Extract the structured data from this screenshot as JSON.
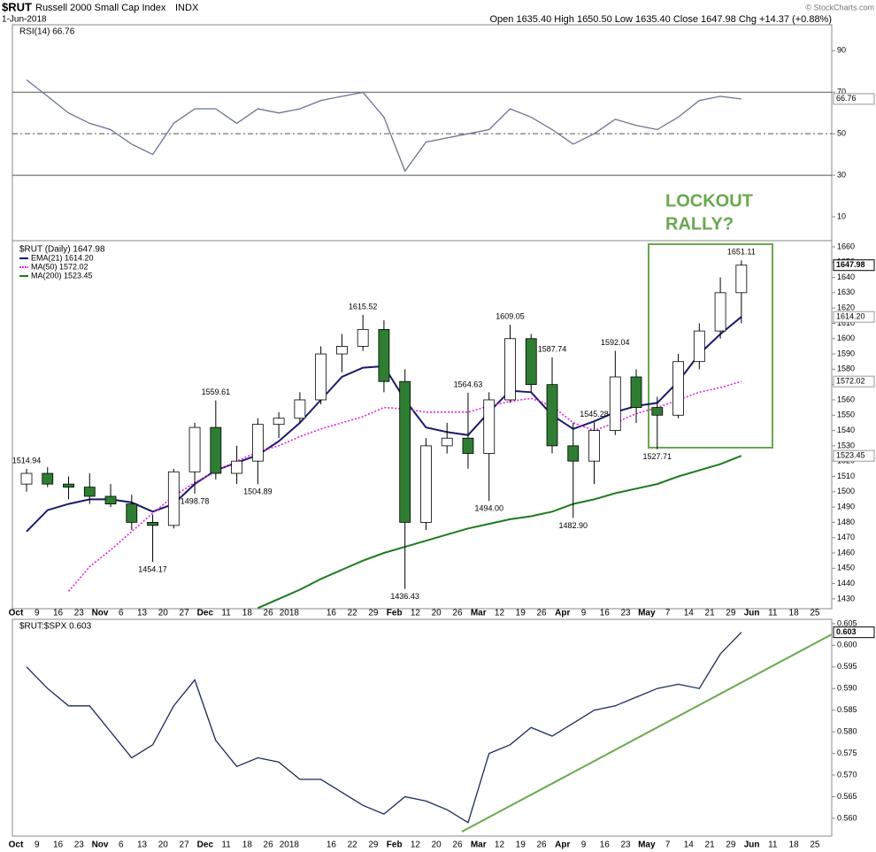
{
  "header": {
    "symbol": "$RUT",
    "name": "Russell 2000 Small Cap Index",
    "exchange": "INDX",
    "date": "1-Jun-2018",
    "quote": "Open 1635.40   High 1650.50   Low 1635.40   Close 1647.98   Chg +14.37 (+0.88%)",
    "credit": "© StockCharts.com"
  },
  "chart_data": [
    {
      "type": "line",
      "legend": "RSI(14) 66.76",
      "color": "#6b7394",
      "values": [
        76,
        68,
        60,
        55,
        52,
        45,
        40,
        55,
        62,
        62,
        55,
        62,
        60,
        62,
        66,
        68,
        70,
        58,
        32,
        46,
        48,
        50,
        52,
        62,
        58,
        52,
        45,
        50,
        57,
        54,
        52,
        58,
        66,
        68,
        66.76,
        null,
        null,
        null,
        null
      ],
      "ylim": [
        -1.5,
        102.5
      ],
      "yticks": [
        10,
        30,
        50,
        70,
        90
      ],
      "levels": [
        70,
        50,
        30
      ],
      "annotation": [
        "LOCKOUT",
        "RALLY?"
      ],
      "annotation_color": "#6aa84f"
    },
    {
      "type": "candlestick",
      "legend": "$RUT (Daily) 1647.98",
      "up_color": "#ffffff",
      "down_color": "#2e7d32",
      "categories": [
        "Oct",
        "9",
        "16",
        "23",
        "Nov",
        "6",
        "13",
        "20",
        "27",
        "Dec",
        "11",
        "18",
        "26",
        "2018",
        null,
        "16",
        "22",
        "29",
        "Feb",
        "12",
        "20",
        "26",
        "Mar",
        "12",
        "19",
        "26",
        "Apr",
        "9",
        "16",
        "23",
        "May",
        "7",
        "14",
        "21",
        "29",
        "Jun",
        "11",
        "18",
        "25"
      ],
      "open": [
        1505,
        1512,
        1505,
        1503,
        1497,
        1492,
        1480,
        1478,
        1513,
        1542,
        1512,
        1520,
        1544,
        1548,
        1560,
        1590,
        1595,
        1606,
        1572,
        1480,
        1530,
        1535,
        1525,
        1560,
        1600,
        1570,
        1530,
        1520,
        1540,
        1575,
        1555,
        1550,
        1585,
        1605,
        1630,
        null,
        null,
        null,
        null
      ],
      "high": [
        1514.94,
        1516,
        1510,
        1512,
        1505,
        1498,
        1485,
        1515,
        1545,
        1559.61,
        1530,
        1548,
        1552,
        1565,
        1595,
        1603,
        1615.52,
        1612,
        1580,
        1535,
        1545,
        1564.63,
        1565,
        1609.05,
        1603,
        1587.74,
        1545,
        1545.28,
        1592.04,
        1580,
        1562,
        1590,
        1610,
        1640,
        1651.11,
        null,
        null,
        null,
        null
      ],
      "low": [
        1500,
        1503,
        1495,
        1492,
        1490,
        1475,
        1454.17,
        1476,
        1498.78,
        1508,
        1505,
        1504.89,
        1535,
        1545,
        1557,
        1578,
        1592,
        1565,
        1436.43,
        1475,
        1525,
        1515,
        1494,
        1558,
        1565,
        1525,
        1482.9,
        1505,
        1537,
        1545,
        1527.71,
        1548,
        1580,
        1600,
        1610,
        null,
        null,
        null,
        null
      ],
      "close": [
        1512,
        1505,
        1503,
        1497,
        1492,
        1480,
        1478,
        1513,
        1542,
        1512,
        1520,
        1544,
        1548,
        1560,
        1590,
        1595,
        1606,
        1572,
        1480,
        1530,
        1535,
        1525,
        1560,
        1600,
        1570,
        1530,
        1520,
        1540,
        1575,
        1555,
        1550,
        1585,
        1605,
        1630,
        1647.98,
        null,
        null,
        null,
        null
      ],
      "high_labels": [
        "1514.94",
        null,
        null,
        null,
        null,
        null,
        null,
        null,
        null,
        "1559.61",
        null,
        null,
        null,
        null,
        null,
        null,
        "1615.52",
        null,
        null,
        null,
        null,
        "1564.63",
        null,
        "1609.05",
        null,
        "1587.74",
        null,
        "1545.28",
        "1592.04",
        null,
        null,
        null,
        null,
        null,
        "1651.11",
        null,
        null,
        null,
        null
      ],
      "low_labels": [
        null,
        null,
        null,
        null,
        null,
        null,
        "1454.17",
        null,
        "1498.78",
        null,
        null,
        "1504.89",
        null,
        null,
        null,
        null,
        null,
        null,
        "1436.43",
        null,
        null,
        null,
        "1494.00",
        null,
        null,
        null,
        "1482.90",
        null,
        null,
        null,
        "1527.71",
        null,
        null,
        null,
        null,
        null,
        null,
        null,
        null
      ],
      "series": [
        {
          "name": "EMA(21) 1614.20",
          "color": "#1a1a6e",
          "values": [
            1474,
            1488,
            1492,
            1495,
            1495,
            1493,
            1487,
            1492,
            1505,
            1514,
            1519,
            1524,
            1533,
            1545,
            1560,
            1575,
            1581,
            1582,
            1560,
            1542,
            1539,
            1537,
            1552,
            1566,
            1565,
            1550,
            1541,
            1546,
            1552,
            1556,
            1558,
            1572,
            1590,
            1603,
            1614.2,
            null,
            null,
            null,
            null
          ],
          "value_labels": [
            null,
            null,
            null,
            null,
            null,
            null,
            null,
            null,
            null,
            null,
            null,
            null,
            null,
            null,
            null,
            null,
            null,
            null,
            null,
            null,
            null,
            null,
            null,
            null,
            null,
            null,
            null,
            null,
            null,
            null,
            null,
            null,
            null,
            null,
            "1614.20",
            null,
            null,
            null,
            null
          ]
        },
        {
          "name": "MA(50) 1572.02",
          "color": "#e020e0",
          "dash": true,
          "values": [
            null,
            null,
            1435,
            1451,
            1462,
            1474,
            1486,
            1497,
            1506,
            1513,
            1520,
            1526,
            1530,
            1536,
            1541,
            1545,
            1549,
            1555,
            1554,
            1552,
            1552,
            1552,
            1556,
            1559,
            1561,
            1556,
            1545,
            1540,
            1545,
            1551,
            1555,
            1560,
            1565,
            1568,
            1572.02,
            null,
            null,
            null,
            null
          ]
        },
        {
          "name": "MA(200) 1523.45",
          "color": "#1e7a1e",
          "values": [
            null,
            null,
            null,
            null,
            null,
            null,
            null,
            null,
            null,
            null,
            null,
            1424,
            1430,
            1436,
            1443,
            1449,
            1455,
            1460,
            1464,
            1468,
            1472,
            1476,
            1479,
            1482,
            1484,
            1487,
            1492,
            1495,
            1499,
            1502,
            1505,
            1510,
            1514,
            1518,
            1523.45,
            null,
            null,
            null,
            null
          ]
        }
      ],
      "ylim": [
        1423.6,
        1664
      ],
      "yticks": [
        1430,
        1440,
        1450,
        1460,
        1470,
        1480,
        1490,
        1500,
        1510,
        1520,
        1530,
        1540,
        1550,
        1560,
        1570,
        1580,
        1590,
        1600,
        1610,
        1620,
        1630,
        1640,
        1650,
        1660
      ]
    },
    {
      "type": "line",
      "legend": "$RUT:$SPX 0.603",
      "color": "#1a2a5a",
      "categories": [
        "Oct",
        "9",
        "16",
        "23",
        "Nov",
        "6",
        "13",
        "20",
        "27",
        "Dec",
        "11",
        "18",
        "26",
        "2018",
        null,
        "16",
        "22",
        "29",
        "Feb",
        "12",
        "20",
        "26",
        "Mar",
        "12",
        "19",
        "26",
        "Apr",
        "9",
        "16",
        "23",
        "May",
        "7",
        "14",
        "21",
        "29",
        "Jun",
        "11",
        "18",
        "25"
      ],
      "values": [
        0.595,
        0.59,
        0.586,
        0.586,
        0.58,
        0.574,
        0.577,
        0.586,
        0.592,
        0.578,
        0.572,
        0.574,
        0.573,
        0.569,
        0.569,
        0.566,
        0.563,
        0.561,
        0.565,
        0.564,
        0.562,
        0.559,
        0.575,
        0.577,
        0.581,
        0.579,
        0.582,
        0.585,
        0.586,
        0.588,
        0.59,
        0.591,
        0.59,
        0.598,
        0.603,
        null,
        null,
        null,
        null
      ],
      "ylim": [
        0.5559,
        0.606
      ],
      "yticks": [
        {
          "value": 0.56,
          "label": "0.560"
        },
        0.565,
        {
          "value": 0.57,
          "label": "0.570"
        },
        0.575,
        {
          "value": 0.58,
          "label": "0.580"
        },
        0.585,
        {
          "value": 0.59,
          "label": "0.590"
        },
        0.595,
        {
          "value": 0.6,
          "label": "0.600"
        },
        0.605
      ]
    }
  ]
}
